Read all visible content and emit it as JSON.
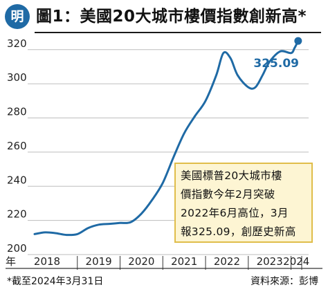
{
  "header": {
    "logo_char": "明",
    "title": "圖1：美國20大城市樓價指數創新高*"
  },
  "callout": {
    "lines": [
      "美國標普20大城市樓",
      "價指數今年2月突破",
      "2022年6月高位，3月",
      "報325.09，創歷史新高"
    ]
  },
  "footnote": "*截至2024年3月31日",
  "source": "資料來源：彭博",
  "colors": {
    "accent": "#1f6aa5",
    "callout_bg": "#fdf5d3",
    "callout_border": "#e0bd4a",
    "grid": "#bdbdbd"
  },
  "chart_data": {
    "type": "line",
    "title": "圖1：美國20大城市樓價指數創新高*",
    "xlabel": "",
    "ylabel": "",
    "year_prefix": "年",
    "x_ticks": [
      "2018",
      "2019",
      "2020",
      "2021",
      "2022",
      "2023",
      "2024"
    ],
    "xlim": [
      "2018-01",
      "2024-04"
    ],
    "y_ticks": [
      200,
      220,
      240,
      260,
      280,
      300,
      320
    ],
    "ylim": [
      200,
      328
    ],
    "grid": true,
    "end_label": "325.09",
    "series": [
      {
        "x": [
          "2018-01",
          "2018-04",
          "2018-07",
          "2018-10",
          "2019-01",
          "2019-04",
          "2019-07",
          "2019-10",
          "2020-01",
          "2020-04",
          "2020-07",
          "2020-10",
          "2021-01",
          "2021-04",
          "2021-07",
          "2021-10",
          "2022-01",
          "2022-04",
          "2022-06",
          "2022-08",
          "2022-10",
          "2023-01",
          "2023-03",
          "2023-05",
          "2023-07",
          "2023-10",
          "2024-01",
          "2024-02",
          "2024-03"
        ],
        "y": [
          212,
          213,
          212.5,
          211.5,
          212,
          215.5,
          217.5,
          218,
          218.5,
          219,
          224,
          232,
          242,
          257,
          271,
          281,
          290,
          305,
          318,
          315,
          305,
          298,
          298,
          305,
          313,
          319,
          318,
          321,
          325.09
        ]
      }
    ]
  }
}
